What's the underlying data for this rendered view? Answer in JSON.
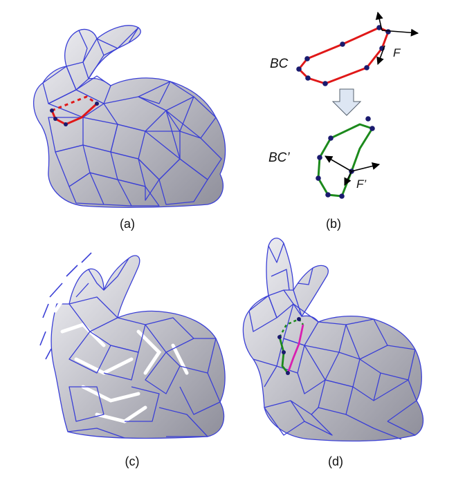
{
  "panels": {
    "a": {
      "caption": "(a)"
    },
    "b": {
      "caption": "(b)",
      "boundary_label": "BC",
      "force_label": "F",
      "deformed_boundary_label": "BC’",
      "deformed_force_label": "F’"
    },
    "c": {
      "caption": "(c)"
    },
    "d": {
      "caption": "(d)"
    }
  },
  "colors": {
    "mesh_edge": "#3a3fd6",
    "mesh_fill_light": "#e8e8ee",
    "mesh_fill_dark": "#9a9aa6",
    "boundary": "#e01818",
    "deformed_boundary": "#1c8a1c",
    "vertex": "#1a1a6e",
    "cut_curve_d": "#d81fb0",
    "arrow": "#000000",
    "down_arrow_fill": "#dde6f3"
  }
}
